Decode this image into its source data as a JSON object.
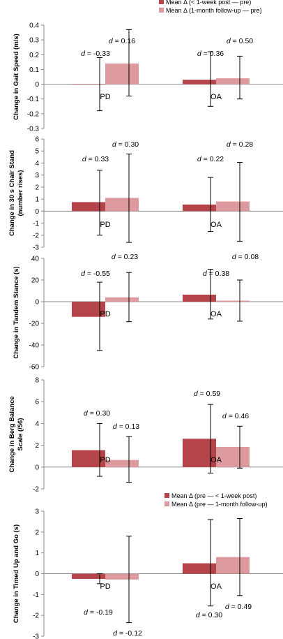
{
  "colors": {
    "post": "#b5434a",
    "followup": "#dc9a9e",
    "axis": "#888888",
    "errorbar": "#000000"
  },
  "chart_data": [
    {
      "type": "bar",
      "ylabel": [
        "Change in Gait Speed (m/s)"
      ],
      "ylim": [
        -0.3,
        0.4
      ],
      "yticks": [
        -0.3,
        -0.2,
        -0.1,
        0,
        0.1,
        0.2,
        0.3,
        0.4
      ],
      "yticklabels": [
        "-0.3",
        "-0.2",
        "-0.1",
        "0",
        "0.1",
        "0.2",
        "0.3",
        "0.4"
      ],
      "categories": [
        "PD",
        "OA"
      ],
      "legend": {
        "placement": "top-right",
        "entries": [
          "Mean Δ (< 1-week post — pre)",
          "Mean Δ (1-month follow-up — pre)"
        ]
      },
      "series": [
        {
          "name": "Mean Δ (< 1-week post — pre)",
          "values": [
            0.0,
            0.03
          ],
          "err_low": [
            -0.18,
            -0.15
          ],
          "err_high": [
            0.18,
            0.22
          ],
          "labels": [
            "d = -0.33",
            "d = 0.36"
          ]
        },
        {
          "name": "Mean Δ (1-month follow-up — pre)",
          "values": [
            0.14,
            0.04
          ],
          "err_low": [
            -0.08,
            -0.1
          ],
          "err_high": [
            0.37,
            0.19
          ],
          "labels": [
            "d = 0.16",
            "d = 0.50"
          ]
        }
      ]
    },
    {
      "type": "bar",
      "ylabel": [
        "Change in 30 s Chair Stand",
        "(number rises)"
      ],
      "ylim": [
        -3,
        6
      ],
      "yticks": [
        -3,
        -2,
        -1,
        0,
        1,
        2,
        3,
        4,
        5,
        6
      ],
      "yticklabels": [
        "-3",
        "-2",
        "-1",
        "0",
        "1",
        "2",
        "3",
        "4",
        "5",
        "6"
      ],
      "categories": [
        "PD",
        "OA"
      ],
      "series": [
        {
          "values": [
            0.75,
            0.55
          ],
          "err_low": [
            -2.0,
            -1.7
          ],
          "err_high": [
            3.4,
            2.8
          ],
          "labels": [
            "d = 0.33",
            "d = 0.22"
          ]
        },
        {
          "values": [
            1.1,
            0.8
          ],
          "err_low": [
            -2.6,
            -2.5
          ],
          "err_high": [
            4.75,
            4.05
          ],
          "labels": [
            "d = 0.30",
            "d = 0.28"
          ]
        }
      ]
    },
    {
      "type": "bar",
      "ylabel": [
        "Change in Tandem Stance (s)"
      ],
      "ylim": [
        -60,
        40
      ],
      "yticks": [
        -60,
        -40,
        -20,
        0,
        20,
        40
      ],
      "yticklabels": [
        "-60",
        "-40",
        "-20",
        "0",
        "20",
        "40"
      ],
      "categories": [
        "PD",
        "OA"
      ],
      "series": [
        {
          "values": [
            -14,
            6.5
          ],
          "err_low": [
            -45,
            -16
          ],
          "err_high": [
            18,
            30
          ],
          "labels": [
            "d = -0.55",
            "d = 0.38"
          ]
        },
        {
          "values": [
            4,
            1
          ],
          "err_low": [
            -18.5,
            -18
          ],
          "err_high": [
            27,
            20
          ],
          "labels": [
            "d = 0.23",
            "d = 0.08"
          ]
        }
      ]
    },
    {
      "type": "bar",
      "ylabel": [
        "Change in Berg Balance",
        "Scale (/56)"
      ],
      "ylim": [
        -2,
        8
      ],
      "yticks": [
        -2,
        0,
        2,
        4,
        6,
        8
      ],
      "yticklabels": [
        "-2",
        "0",
        "2",
        "4",
        "6",
        "8"
      ],
      "categories": [
        "PD",
        "OA"
      ],
      "series": [
        {
          "values": [
            1.55,
            2.6
          ],
          "err_low": [
            -0.85,
            -0.55
          ],
          "err_high": [
            4.0,
            5.75
          ],
          "labels": [
            "d = 0.30",
            "d = 0.59"
          ]
        },
        {
          "values": [
            0.65,
            1.85
          ],
          "err_low": [
            -1.4,
            -0.1
          ],
          "err_high": [
            2.8,
            3.75
          ],
          "labels": [
            "d = 0.13",
            "d = 0.46"
          ]
        }
      ]
    },
    {
      "type": "bar",
      "ylabel": [
        "Change in Timed Up and Go (s)"
      ],
      "ylim": [
        -3,
        3
      ],
      "yticks": [
        -3,
        -2,
        -1,
        0,
        1,
        2,
        3
      ],
      "yticklabels": [
        "-3",
        "-2",
        "-1",
        "0",
        "1",
        "2",
        "3"
      ],
      "categories": [
        "PD",
        "OA"
      ],
      "legend": {
        "placement": "top-right",
        "entries": [
          "Mean Δ (pre — < 1-week post)",
          "Mean Δ (pre — 1-month follow-up)"
        ]
      },
      "series": [
        {
          "name": "Mean Δ (pre — < 1-week post)",
          "values": [
            -0.25,
            0.5
          ],
          "err_low": [
            -0.48,
            -1.55
          ],
          "err_high": [
            0.0,
            2.6
          ],
          "labels": [
            "d = -0.19",
            "d = 0.30"
          ]
        },
        {
          "name": "Mean Δ (pre — 1-month follow-up)",
          "values": [
            -0.28,
            0.8
          ],
          "err_low": [
            -2.35,
            -1.05
          ],
          "err_high": [
            1.8,
            2.65
          ],
          "labels": [
            "d = -0.12",
            "d = 0.49"
          ]
        }
      ]
    }
  ]
}
